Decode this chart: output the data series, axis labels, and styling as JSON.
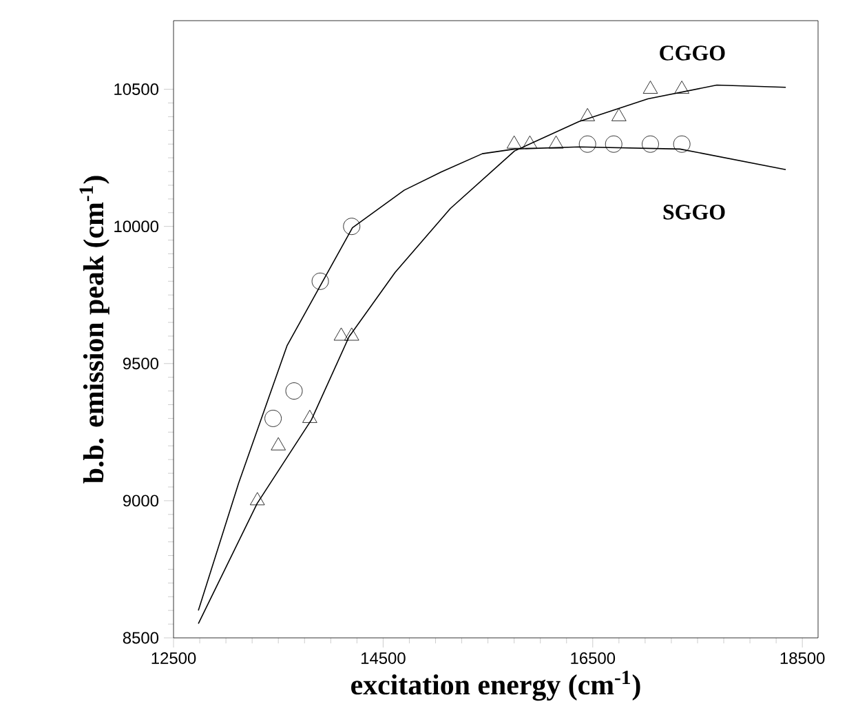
{
  "chart_data": {
    "type": "scatter",
    "xlabel": "excitation energy (cm$^{-1}$)",
    "ylabel": "b.b. emission peak (cm$^{-1}$)",
    "xlim": [
      12500,
      18650
    ],
    "ylim": [
      8500,
      10750
    ],
    "xticks": [
      12500,
      14500,
      16500,
      18500
    ],
    "yticks": [
      8500,
      9000,
      9500,
      10000,
      10500
    ],
    "grid": false,
    "series": [
      {
        "type": "line",
        "name": "CGGO",
        "color": "#000000",
        "marker": "none",
        "x": [
          12737,
          13298,
          13816,
          14175,
          14614,
          15141,
          15754,
          16368,
          17026,
          17684,
          18342
        ],
        "values": [
          8552,
          8990,
          9295,
          9598,
          9832,
          10065,
          10275,
          10382,
          10465,
          10515,
          10507
        ]
      },
      {
        "type": "line",
        "name": "SGGO",
        "color": "#000000",
        "marker": "none",
        "x": [
          12737,
          13122,
          13583,
          13921,
          14207,
          14701,
          15053,
          15447,
          15754,
          16368,
          17332,
          18342
        ],
        "values": [
          8600,
          9065,
          9565,
          9798,
          9995,
          10132,
          10198,
          10265,
          10282,
          10290,
          10282,
          10207
        ]
      },
      {
        "color": "#000000",
        "marker": "triangle",
        "x": [
          13300,
          13500,
          13800,
          14100,
          14200,
          15750,
          15900,
          16150,
          16450,
          16750,
          17050,
          17350
        ],
        "values": [
          9000,
          9200,
          9300,
          9600,
          9600,
          10300,
          10300,
          10300,
          10400,
          10400,
          10500,
          10500
        ]
      },
      {
        "color": "#000000",
        "marker": "circle",
        "x": [
          13450,
          13650,
          13900,
          14200,
          16450,
          16700,
          17050,
          17350
        ],
        "values": [
          9300,
          9400,
          9800,
          10000,
          10300,
          10300,
          10300,
          10300
        ]
      }
    ]
  }
}
